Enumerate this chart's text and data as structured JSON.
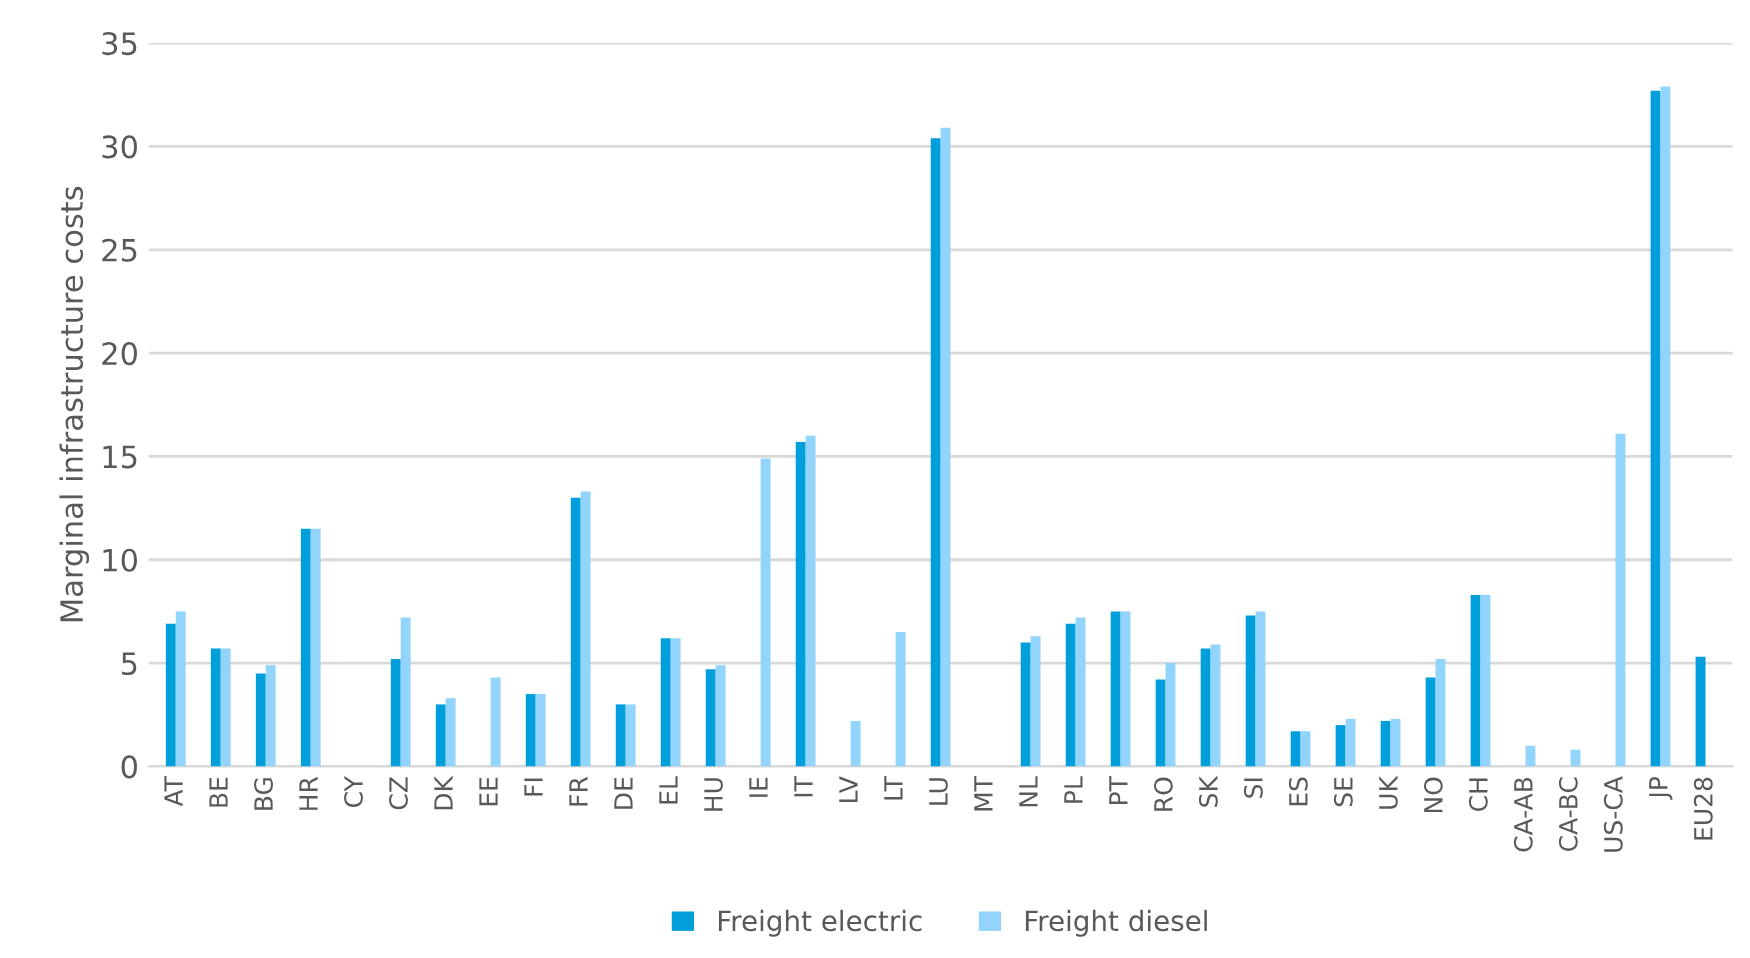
{
  "chart_data": {
    "type": "bar",
    "ylabel": "Marginal infrastructure costs",
    "categories": [
      "AT",
      "BE",
      "BG",
      "HR",
      "CY",
      "CZ",
      "DK",
      "EE",
      "FI",
      "FR",
      "DE",
      "EL",
      "HU",
      "IE",
      "IT",
      "LV",
      "LT",
      "LU",
      "MT",
      "NL",
      "PL",
      "PT",
      "RO",
      "SK",
      "SI",
      "ES",
      "SE",
      "UK",
      "NO",
      "CH",
      "CA-AB",
      "CA-BC",
      "US-CA",
      "JP",
      "EU28"
    ],
    "series": [
      {
        "name": "Freight electric",
        "color": "#009fdb",
        "values": [
          6.9,
          5.7,
          4.5,
          11.5,
          null,
          5.2,
          3.0,
          null,
          3.5,
          13.0,
          3.0,
          6.2,
          4.7,
          null,
          15.7,
          null,
          null,
          30.4,
          null,
          6.0,
          6.9,
          7.5,
          4.2,
          5.7,
          7.3,
          1.7,
          2.0,
          2.2,
          4.3,
          8.3,
          null,
          null,
          null,
          32.7,
          5.3
        ]
      },
      {
        "name": "Freight diesel",
        "color": "#92d4fb",
        "values": [
          7.5,
          5.7,
          4.9,
          11.5,
          null,
          7.2,
          3.3,
          4.3,
          3.5,
          13.3,
          3.0,
          6.2,
          4.9,
          14.9,
          16.0,
          2.2,
          6.5,
          30.9,
          null,
          6.3,
          7.2,
          7.5,
          5.0,
          5.9,
          7.5,
          1.7,
          2.3,
          2.3,
          5.2,
          8.3,
          1.0,
          0.8,
          16.1,
          32.9,
          null
        ]
      }
    ],
    "ylim": [
      0,
      35
    ],
    "yticks": [
      0,
      5,
      10,
      15,
      20,
      25,
      30,
      35
    ],
    "grid": "y",
    "legend": "bottom"
  }
}
